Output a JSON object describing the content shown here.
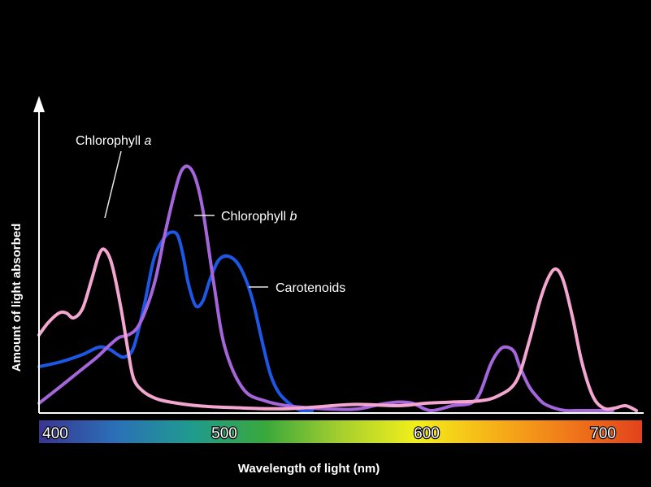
{
  "chart_data": {
    "type": "line",
    "title": "",
    "xlabel": "Wavelength of light (nm)",
    "ylabel": "Amount of light absorbed",
    "xlim": [
      388,
      720
    ],
    "ylim": [
      0,
      1
    ],
    "x_ticks": [
      "400",
      "500",
      "600",
      "700"
    ],
    "grid": false,
    "legend": "labels beside curves",
    "background": "#000000",
    "axis_color": "#ffffff",
    "spectrum_colors": [
      "#3a3590",
      "#2b6fb8",
      "#1f9a8f",
      "#39a83c",
      "#a6cf2e",
      "#f2ef1a",
      "#f7b318",
      "#f07a1a",
      "#e3421c"
    ],
    "series": [
      {
        "name": "Chlorophyll a",
        "label_prefix": "Chlorophyll ",
        "label_italic": "a",
        "color": "#f3a6cf",
        "x": [
          388,
          393,
          399,
          403,
          407,
          412,
          417,
          421,
          424,
          428,
          433,
          437,
          440,
          445,
          452,
          460,
          475,
          495,
          525,
          560,
          585,
          600,
          615,
          630,
          640,
          650,
          657,
          663,
          668,
          672,
          676,
          681,
          686,
          692,
          698,
          704,
          710,
          716
        ],
        "values": [
          0.31,
          0.36,
          0.4,
          0.4,
          0.38,
          0.42,
          0.54,
          0.64,
          0.66,
          0.6,
          0.42,
          0.24,
          0.13,
          0.08,
          0.05,
          0.035,
          0.02,
          0.012,
          0.008,
          0.025,
          0.02,
          0.03,
          0.035,
          0.04,
          0.06,
          0.12,
          0.28,
          0.45,
          0.55,
          0.58,
          0.53,
          0.38,
          0.2,
          0.06,
          0.01,
          0.01,
          0.02,
          0.0
        ]
      },
      {
        "name": "Chlorophyll b",
        "label_prefix": "Chlorophyll ",
        "label_italic": "b",
        "color": "#a566dc",
        "x": [
          388,
          400,
          410,
          420,
          427,
          432,
          437,
          442,
          447,
          452,
          457,
          462,
          466,
          470,
          474,
          478,
          484,
          490,
          500,
          512,
          530,
          560,
          575,
          585,
          593,
          603,
          615,
          625,
          630,
          636,
          641,
          645,
          649,
          652,
          657,
          661,
          665,
          671,
          677,
          683,
          689,
          695,
          703
        ],
        "values": [
          0.03,
          0.1,
          0.16,
          0.22,
          0.27,
          0.3,
          0.31,
          0.34,
          0.42,
          0.54,
          0.72,
          0.88,
          0.98,
          1.0,
          0.95,
          0.82,
          0.52,
          0.26,
          0.09,
          0.04,
          0.015,
          0.005,
          0.025,
          0.035,
          0.03,
          0.0,
          0.02,
          0.03,
          0.07,
          0.19,
          0.25,
          0.26,
          0.24,
          0.18,
          0.1,
          0.06,
          0.03,
          0.01,
          0.0,
          0.0,
          0.0,
          0.0,
          0.0
        ]
      },
      {
        "name": "Carotenoids",
        "color": "#1d57e6",
        "x": [
          388,
          400,
          412,
          421,
          427,
          431,
          435,
          440,
          446,
          451,
          456,
          460,
          464,
          467,
          470,
          474,
          478,
          482,
          487,
          493,
          499,
          505,
          510,
          515,
          520,
          527,
          532,
          538
        ],
        "values": [
          0.18,
          0.2,
          0.23,
          0.26,
          0.25,
          0.23,
          0.22,
          0.26,
          0.44,
          0.62,
          0.7,
          0.73,
          0.72,
          0.64,
          0.52,
          0.43,
          0.45,
          0.54,
          0.62,
          0.63,
          0.58,
          0.46,
          0.3,
          0.15,
          0.07,
          0.02,
          0.0,
          0.0
        ]
      }
    ]
  }
}
